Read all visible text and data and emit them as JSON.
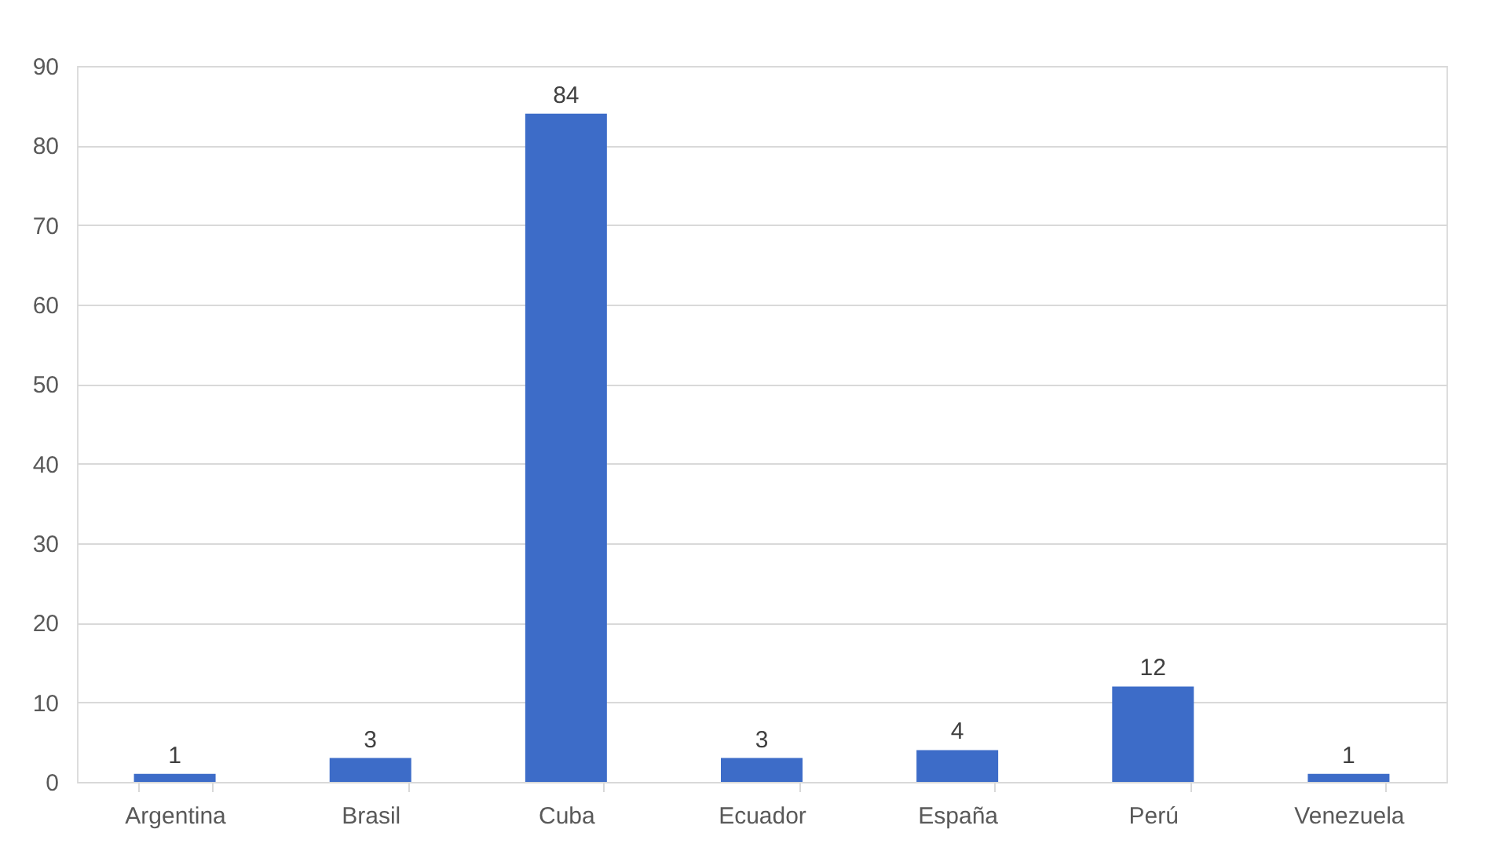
{
  "chart_data": {
    "type": "bar",
    "categories": [
      "Argentina",
      "Brasil",
      "Cuba",
      "Ecuador",
      "España",
      "Perú",
      "Venezuela"
    ],
    "values": [
      1,
      3,
      84,
      3,
      4,
      12,
      1
    ],
    "color": "#3d6cc8",
    "ylim": [
      0,
      90
    ],
    "yticks": [
      0,
      10,
      20,
      30,
      40,
      50,
      60,
      70,
      80,
      90
    ],
    "grid": "y",
    "data_labels": true
  }
}
